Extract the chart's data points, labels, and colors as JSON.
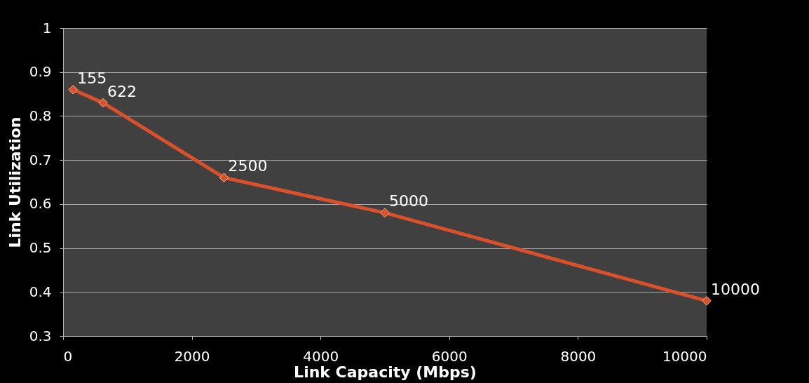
{
  "chart_data": {
    "type": "line",
    "xlabel": "Link Capacity (Mbps)",
    "ylabel": "Link Utilization",
    "x": [
      155,
      622,
      2500,
      5000,
      10000
    ],
    "series": [
      {
        "color": "#d9502a",
        "values": [
          0.86,
          0.83,
          0.66,
          0.58,
          0.38
        ]
      }
    ],
    "annotations": [
      {
        "text": "155",
        "x": 155,
        "y": 0.86
      },
      {
        "text": "622",
        "x": 622,
        "y": 0.83
      },
      {
        "text": "2500",
        "x": 2500,
        "y": 0.66
      },
      {
        "text": "5000",
        "x": 5000,
        "y": 0.58
      },
      {
        "text": "10000",
        "x": 10000,
        "y": 0.38
      }
    ],
    "xlim": [
      0,
      10000
    ],
    "xticks": [
      0,
      2000,
      4000,
      6000,
      8000,
      10000
    ],
    "ylim": [
      0.3,
      1
    ],
    "yticks": [
      0.3,
      0.4,
      0.5,
      0.6,
      0.7,
      0.8,
      0.9,
      1
    ],
    "grid": "y",
    "marker": "diamond",
    "line_style": "solid"
  }
}
